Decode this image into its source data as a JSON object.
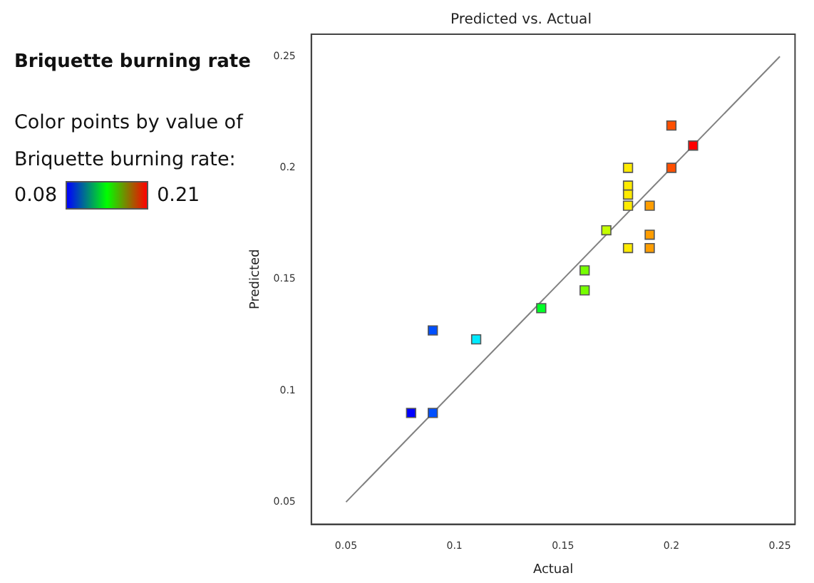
{
  "chart_data": {
    "type": "scatter",
    "title": "Predicted vs. Actual",
    "subtitle": "Briquette burning rate",
    "xlabel": "Actual",
    "ylabel": "Predicted",
    "annotations": [
      "Color points by value of Briquette burning rate:",
      "0.08",
      "0.21"
    ],
    "xlim": [
      0.034,
      0.257
    ],
    "ylim": [
      0.04,
      0.26
    ],
    "xticks": [
      0.05,
      0.1,
      0.15,
      0.2,
      0.25
    ],
    "yticks": [
      0.05,
      0.1,
      0.15,
      0.2,
      0.25
    ],
    "grid": false,
    "legend": false,
    "marker": "square",
    "series": [
      {
        "type": "line",
        "marker": "none",
        "color": "#808080",
        "x": [
          0.05,
          0.25
        ],
        "values": [
          0.05,
          0.25
        ]
      },
      {
        "x": [
          0.2,
          0.21,
          0.2,
          0.18,
          0.18,
          0.18,
          0.18,
          0.19,
          0.17,
          0.19,
          0.18,
          0.19,
          0.16,
          0.16,
          0.14,
          0.09,
          0.11,
          0.08,
          0.09
        ],
        "values": [
          0.219,
          0.21,
          0.2,
          0.2,
          0.192,
          0.188,
          0.183,
          0.183,
          0.172,
          0.17,
          0.164,
          0.164,
          0.154,
          0.145,
          0.137,
          0.127,
          0.123,
          0.09,
          0.09
        ],
        "colors": [
          "#ff4f00",
          "#ff0000",
          "#ff4f00",
          "#ffeb00",
          "#ffeb00",
          "#ffeb00",
          "#ffeb00",
          "#ff9d00",
          "#c4ff00",
          "#ff9d00",
          "#ffeb00",
          "#ff9d00",
          "#76ff00",
          "#76ff00",
          "#00ff27",
          "#004fff",
          "#00ebff",
          "#0000ff",
          "#004fff"
        ]
      }
    ]
  }
}
